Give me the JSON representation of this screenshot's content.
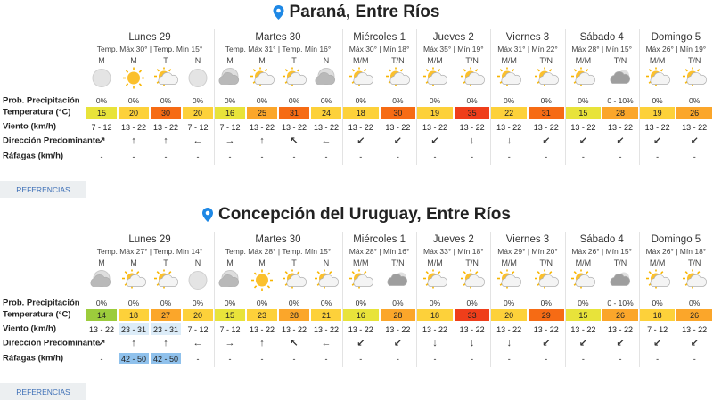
{
  "sections": [
    {
      "location": "Paraná, Entre Ríos",
      "row_labels": [
        "Prob. Precipitación",
        "Temperatura (°C)",
        "Viento (km/h)",
        "Dirección Predominante",
        "Ráfagas (km/h)"
      ],
      "days": [
        {
          "name": "Lunes 29",
          "max": "Temp. Máx 30°",
          "min": "Temp. Mín 15°",
          "periods": [
            "M",
            "M",
            "T",
            "N"
          ],
          "precipitation": [
            "0%",
            "0%",
            "0%",
            "0%"
          ],
          "temperature": [
            15,
            20,
            30,
            20
          ],
          "wind": [
            "7 - 12",
            "13 - 22",
            "13 - 22",
            "7 - 12"
          ],
          "direction": [
            "↗",
            "↑",
            "↑",
            "←"
          ],
          "gusts": [
            "-",
            "-",
            "-",
            "-"
          ]
        },
        {
          "name": "Martes 30",
          "max": "Temp. Máx 31°",
          "min": "Temp. Mín 16°",
          "periods": [
            "M",
            "M",
            "T",
            "N"
          ],
          "precipitation": [
            "0%",
            "0%",
            "0%",
            "0%"
          ],
          "temperature": [
            16,
            25,
            31,
            24
          ],
          "wind": [
            "7 - 12",
            "13 - 22",
            "13 - 22",
            "13 - 22"
          ],
          "direction": [
            "→",
            "↑",
            "↖",
            "←"
          ],
          "gusts": [
            "-",
            "-",
            "-",
            "-"
          ]
        },
        {
          "name": "Miércoles 1",
          "max": "Máx 30°",
          "min": "Mín 18°",
          "periods": [
            "M/M",
            "T/N"
          ],
          "precipitation": [
            "0%",
            "0%"
          ],
          "temperature": [
            18,
            30
          ],
          "wind": [
            "13 - 22",
            "13 - 22"
          ],
          "direction": [
            "↙",
            "↙"
          ],
          "gusts": [
            "-",
            "-"
          ]
        },
        {
          "name": "Jueves 2",
          "max": "Máx 35°",
          "min": "Mín 19°",
          "periods": [
            "M/M",
            "T/N"
          ],
          "precipitation": [
            "0%",
            "0%"
          ],
          "temperature": [
            19,
            35
          ],
          "wind": [
            "13 - 22",
            "13 - 22"
          ],
          "direction": [
            "↙",
            "↓"
          ],
          "gusts": [
            "-",
            "-"
          ]
        },
        {
          "name": "Viernes 3",
          "max": "Máx 31°",
          "min": "Mín 22°",
          "periods": [
            "M/M",
            "T/N"
          ],
          "precipitation": [
            "0%",
            "0%"
          ],
          "temperature": [
            22,
            31
          ],
          "wind": [
            "13 - 22",
            "13 - 22"
          ],
          "direction": [
            "↓",
            "↙"
          ],
          "gusts": [
            "-",
            "-"
          ]
        },
        {
          "name": "Sábado 4",
          "max": "Máx 28°",
          "min": "Mín 15°",
          "periods": [
            "M/M",
            "T/N"
          ],
          "precipitation": [
            "0%",
            "0 - 10%"
          ],
          "temperature": [
            15,
            28
          ],
          "wind": [
            "13 - 22",
            "13 - 22"
          ],
          "direction": [
            "↙",
            "↙"
          ],
          "gusts": [
            "-",
            "-"
          ]
        },
        {
          "name": "Domingo 5",
          "max": "Máx 26°",
          "min": "Mín 19°",
          "periods": [
            "M/M",
            "T/N"
          ],
          "precipitation": [
            "0%",
            "0%"
          ],
          "temperature": [
            19,
            26
          ],
          "wind": [
            "13 - 22",
            "13 - 22"
          ],
          "direction": [
            "↙",
            "↙"
          ],
          "gusts": [
            "-",
            "-"
          ]
        }
      ],
      "button": "REFERENCIAS"
    },
    {
      "location": "Concepción del Uruguay, Entre Ríos",
      "row_labels": [
        "Prob. Precipitación",
        "Temperatura (°C)",
        "Viento (km/h)",
        "Dirección Predominante",
        "Ráfagas (km/h)"
      ],
      "days": [
        {
          "name": "Lunes 29",
          "max": "Temp. Máx 27°",
          "min": "Temp. Mín 14°",
          "periods": [
            "M",
            "M",
            "T",
            "N"
          ],
          "precipitation": [
            "0%",
            "0%",
            "0%",
            "0%"
          ],
          "temperature": [
            14,
            18,
            27,
            20
          ],
          "wind": [
            "13 - 22",
            "23 - 31",
            "23 - 31",
            "7 - 12"
          ],
          "direction": [
            "↗",
            "↑",
            "↑",
            "←"
          ],
          "gusts": [
            "-",
            "42 - 50",
            "42 - 50",
            "-"
          ]
        },
        {
          "name": "Martes 30",
          "max": "Temp. Máx 28°",
          "min": "Temp. Mín 15°",
          "periods": [
            "M",
            "M",
            "T",
            "N"
          ],
          "precipitation": [
            "0%",
            "0%",
            "0%",
            "0%"
          ],
          "temperature": [
            15,
            23,
            28,
            21
          ],
          "wind": [
            "7 - 12",
            "13 - 22",
            "13 - 22",
            "13 - 22"
          ],
          "direction": [
            "→",
            "↑",
            "↖",
            "←"
          ],
          "gusts": [
            "-",
            "-",
            "-",
            "-"
          ]
        },
        {
          "name": "Miércoles 1",
          "max": "Máx 28°",
          "min": "Mín 16°",
          "periods": [
            "M/M",
            "T/N"
          ],
          "precipitation": [
            "0%",
            "0%"
          ],
          "temperature": [
            16,
            28
          ],
          "wind": [
            "13 - 22",
            "13 - 22"
          ],
          "direction": [
            "↙",
            "↙"
          ],
          "gusts": [
            "-",
            "-"
          ]
        },
        {
          "name": "Jueves 2",
          "max": "Máx 33°",
          "min": "Mín 18°",
          "periods": [
            "M/M",
            "T/N"
          ],
          "precipitation": [
            "0%",
            "0%"
          ],
          "temperature": [
            18,
            33
          ],
          "wind": [
            "13 - 22",
            "13 - 22"
          ],
          "direction": [
            "↓",
            "↓"
          ],
          "gusts": [
            "-",
            "-"
          ]
        },
        {
          "name": "Viernes 3",
          "max": "Máx 29°",
          "min": "Mín 20°",
          "periods": [
            "M/M",
            "T/N"
          ],
          "precipitation": [
            "0%",
            "0%"
          ],
          "temperature": [
            20,
            29
          ],
          "wind": [
            "13 - 22",
            "13 - 22"
          ],
          "direction": [
            "↓",
            "↙"
          ],
          "gusts": [
            "-",
            "-"
          ]
        },
        {
          "name": "Sábado 4",
          "max": "Máx 26°",
          "min": "Mín 15°",
          "periods": [
            "M/M",
            "T/N"
          ],
          "precipitation": [
            "0%",
            "0 - 10%"
          ],
          "temperature": [
            15,
            26
          ],
          "wind": [
            "13 - 22",
            "13 - 22"
          ],
          "direction": [
            "↙",
            "↙"
          ],
          "gusts": [
            "-",
            "-"
          ]
        },
        {
          "name": "Domingo 5",
          "max": "Máx 26°",
          "min": "Mín 18°",
          "periods": [
            "M/M",
            "T/N"
          ],
          "precipitation": [
            "0%",
            "0%"
          ],
          "temperature": [
            18,
            26
          ],
          "wind": [
            "7 - 12",
            "13 - 22"
          ],
          "direction": [
            "↙",
            "↙"
          ],
          "gusts": [
            "-",
            "-"
          ]
        }
      ],
      "button": "REFERENCIAS"
    }
  ]
}
